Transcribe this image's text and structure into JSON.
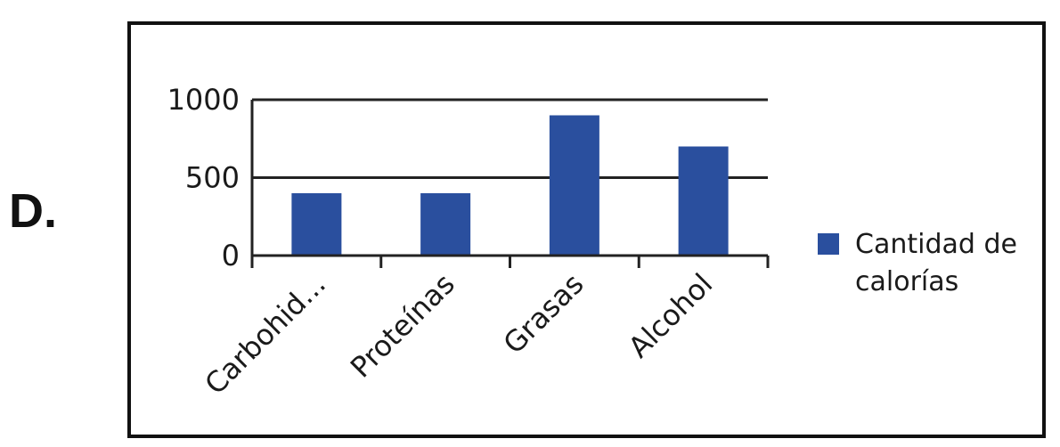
{
  "option_label": "D.",
  "chart_data": {
    "type": "bar",
    "categories": [
      "Carbohid...",
      "Proteínas",
      "Grasas",
      "Alcohol"
    ],
    "series": [
      {
        "name": "Cantidad de calorías",
        "values": [
          400,
          400,
          900,
          700
        ]
      }
    ],
    "legend_lines": [
      "Cantidad de",
      "calorías"
    ],
    "y_ticks": [
      0,
      500,
      1000
    ],
    "ylim": [
      0,
      1000
    ],
    "grid": true,
    "legend_position": "right",
    "title": "",
    "xlabel": "",
    "ylabel": "",
    "colors": {
      "bar": "#2a4f9e",
      "axis": "#222222",
      "grid": "#222222"
    }
  }
}
